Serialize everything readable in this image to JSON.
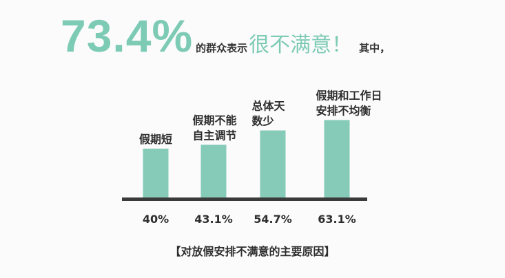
{
  "headline": {
    "percent": "73.4%",
    "text1": "的群众表示",
    "emphasis": "很不满意！",
    "text2": "其中，"
  },
  "colors": {
    "accent": "#7ecbb5",
    "bar": "#86cbb8",
    "axis": "#3a3a3a",
    "text": "#2e2e2e"
  },
  "chart_data": {
    "type": "bar",
    "title": "【对放假安排不满意的主要原因】",
    "categories": [
      [
        "假期短"
      ],
      [
        "假期不能",
        "自主调节"
      ],
      [
        "总体天",
        "数少"
      ],
      [
        "假期和工作日",
        "安排不均衡"
      ]
    ],
    "values": [
      40,
      43.1,
      54.7,
      63.1
    ],
    "value_labels": [
      "40%",
      "43.1%",
      "54.7%",
      "63.1%"
    ],
    "unit": "%",
    "grid": false,
    "ylim": [
      0,
      70
    ]
  }
}
